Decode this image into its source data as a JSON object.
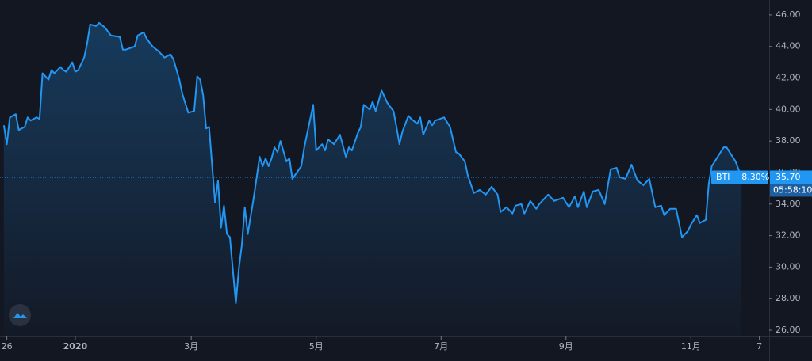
{
  "chart_data": {
    "type": "area",
    "series": [
      {
        "name": "BTI",
        "color": "#2196f3",
        "x": [
          0,
          1,
          2,
          4,
          5,
          7,
          8,
          9,
          11,
          12,
          13,
          15,
          16,
          17,
          19,
          20,
          21,
          23,
          24,
          25,
          27,
          28,
          29,
          31,
          32,
          34,
          36,
          39,
          40,
          41,
          44,
          45,
          47,
          48,
          50,
          52,
          54,
          56,
          57,
          59,
          60,
          62,
          64,
          65,
          66,
          67,
          68,
          69,
          71,
          72,
          73,
          74,
          75,
          76,
          78,
          79,
          80,
          81,
          82,
          84,
          86,
          87,
          88,
          89,
          90,
          91,
          92,
          93,
          95,
          96,
          97,
          100,
          101,
          104,
          105,
          107,
          108,
          109,
          111,
          113,
          115,
          116,
          117,
          119,
          120,
          121,
          123,
          124,
          125,
          127,
          129,
          131,
          132,
          133,
          134,
          136,
          137,
          139,
          140,
          141,
          143,
          144,
          145,
          148,
          150,
          152,
          153,
          155,
          156,
          158,
          160,
          162,
          164,
          166,
          167,
          169,
          171,
          172,
          174,
          175,
          177,
          179,
          180,
          183,
          185,
          188,
          190,
          192,
          193,
          195,
          196,
          198,
          200,
          202,
          204,
          206,
          207,
          209,
          211,
          213,
          215,
          217,
          219,
          221,
          222,
          224,
          226,
          228,
          230,
          231,
          233,
          234,
          236,
          237,
          238,
          239,
          240,
          242,
          243,
          245,
          246,
          247,
          248
        ],
        "values": [
          39.0,
          37.8,
          39.5,
          39.7,
          38.7,
          38.9,
          39.5,
          39.3,
          39.5,
          39.4,
          42.3,
          41.9,
          42.5,
          42.3,
          42.7,
          42.5,
          42.4,
          43.0,
          42.4,
          42.5,
          43.3,
          44.2,
          45.4,
          45.3,
          45.5,
          45.2,
          44.7,
          44.6,
          43.8,
          43.8,
          44.0,
          44.7,
          44.9,
          44.5,
          44.0,
          43.7,
          43.3,
          43.5,
          43.2,
          41.9,
          41.0,
          39.8,
          39.9,
          42.1,
          41.9,
          40.9,
          38.8,
          38.9,
          34.1,
          35.5,
          32.5,
          33.9,
          32.1,
          31.9,
          27.7,
          29.9,
          31.4,
          33.8,
          32.1,
          34.4,
          37.0,
          36.4,
          36.9,
          36.4,
          36.9,
          37.6,
          37.3,
          38.0,
          36.7,
          36.9,
          35.6,
          36.4,
          37.6,
          40.3,
          37.4,
          37.8,
          37.4,
          38.1,
          37.8,
          38.4,
          37.0,
          37.6,
          37.4,
          38.5,
          38.9,
          40.3,
          40.0,
          40.5,
          39.9,
          41.2,
          40.4,
          39.9,
          38.9,
          37.8,
          38.6,
          39.6,
          39.4,
          39.1,
          39.5,
          38.4,
          39.3,
          39.0,
          39.3,
          39.5,
          38.9,
          37.3,
          37.2,
          36.7,
          35.8,
          34.7,
          34.9,
          34.6,
          35.1,
          34.6,
          33.5,
          33.8,
          33.4,
          33.9,
          34.0,
          33.4,
          34.2,
          33.7,
          34.0,
          34.6,
          34.2,
          34.4,
          33.8,
          34.5,
          33.8,
          34.8,
          33.8,
          34.8,
          34.9,
          34.0,
          36.2,
          36.3,
          35.7,
          35.6,
          36.5,
          35.5,
          35.2,
          35.6,
          33.8,
          33.9,
          33.3,
          33.7,
          33.7,
          31.9,
          32.3,
          32.7,
          33.3,
          32.8,
          33.0,
          35.3,
          36.4,
          36.7,
          37.0,
          37.6,
          37.6,
          37.0,
          36.7,
          36.2,
          35.7
        ]
      }
    ],
    "last_price": {
      "value": 35.7,
      "label": "35.70"
    },
    "change": "−8.30%",
    "countdown": "05:58:10",
    "xlim": [
      -1.3,
      257.3
    ],
    "xticks": [
      {
        "value": 1,
        "label": "26"
      },
      {
        "value": 24,
        "label": "2020"
      },
      {
        "value": 63,
        "label": "3月"
      },
      {
        "value": 105,
        "label": "5月"
      },
      {
        "value": 147,
        "label": "7月"
      },
      {
        "value": 189,
        "label": "9月"
      },
      {
        "value": 231,
        "label": "11月"
      },
      {
        "value": 254,
        "label": "7"
      }
    ],
    "ylim": [
      25.6,
      46.95
    ],
    "yticks": [
      {
        "value": 26,
        "label": "26.00"
      },
      {
        "value": 28,
        "label": "28.00"
      },
      {
        "value": 30,
        "label": "30.00"
      },
      {
        "value": 32,
        "label": "32.00"
      },
      {
        "value": 34,
        "label": "34.00"
      },
      {
        "value": 36,
        "label": "36.00"
      },
      {
        "value": 38,
        "label": "38.00"
      },
      {
        "value": 40,
        "label": "40.00"
      },
      {
        "value": 42,
        "label": "42.00"
      },
      {
        "value": 44,
        "label": "44.00"
      },
      {
        "value": 46,
        "label": "46.00"
      }
    ],
    "grid": false
  }
}
